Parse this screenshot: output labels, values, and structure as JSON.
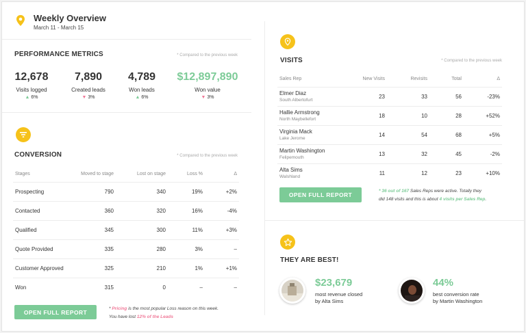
{
  "header": {
    "title": "Weekly Overview",
    "date_range": "March 11 - March 15"
  },
  "performance": {
    "title": "PERFORMANCE METRICS",
    "note": "* Compared to the previous week",
    "metrics": [
      {
        "value": "12,678",
        "label": "Visits logged",
        "change": "6%",
        "direction": "up"
      },
      {
        "value": "7,890",
        "label": "Created leads",
        "change": "3%",
        "direction": "down"
      },
      {
        "value": "4,789",
        "label": "Won leads",
        "change": "6%",
        "direction": "up"
      },
      {
        "value": "$12,897,890",
        "label": "Won value",
        "change": "3%",
        "direction": "down"
      }
    ]
  },
  "conversion": {
    "title": "CONVERSION",
    "note": "* Compared to the previous week",
    "columns": [
      "Stages",
      "Moved to stage",
      "Lost on stage",
      "Loss %",
      "Δ"
    ],
    "rows": [
      {
        "stage": "Prospecting",
        "moved": "790",
        "lost": "340",
        "loss": "19%",
        "delta": "+2%",
        "delta_type": "neg"
      },
      {
        "stage": "Contacted",
        "moved": "360",
        "lost": "320",
        "loss": "16%",
        "delta": "-4%",
        "delta_type": "pos"
      },
      {
        "stage": "Qualified",
        "moved": "345",
        "lost": "300",
        "loss": "11%",
        "delta": "+3%",
        "delta_type": "neg"
      },
      {
        "stage": "Quote Provided",
        "moved": "335",
        "lost": "280",
        "loss": "3%",
        "delta": "–",
        "delta_type": "none"
      },
      {
        "stage": "Customer Approved",
        "moved": "325",
        "lost": "210",
        "loss": "1%",
        "delta": "+1%",
        "delta_type": "neg"
      },
      {
        "stage": "Won",
        "moved": "315",
        "lost": "0",
        "loss": "–",
        "delta": "–",
        "delta_type": "none"
      }
    ],
    "button": "OPEN FULL REPORT",
    "footnote": {
      "line1_pre": "* ",
      "line1_bold": "Pricing",
      "line1_post": " is the most popular Loss reason on this week.",
      "line2_pre": "You have lost ",
      "line2_bold": "12% of the Leads"
    }
  },
  "visits": {
    "title": "VISITS",
    "note": "* Compared to the previous week",
    "columns": [
      "Sales Rep",
      "New Visits",
      "Revisits",
      "Total",
      "Δ"
    ],
    "rows": [
      {
        "name": "Elmer Diaz",
        "location": "South Albertofurt",
        "new": "23",
        "revisits": "33",
        "total": "56",
        "delta": "-23%",
        "delta_type": "neg"
      },
      {
        "name": "Hallie Armstrong",
        "location": "North Maybellefort",
        "new": "18",
        "revisits": "10",
        "total": "28",
        "delta": "+52%",
        "delta_type": "pos"
      },
      {
        "name": "Virginia Mack",
        "location": "Lake Jerome",
        "new": "14",
        "revisits": "54",
        "total": "68",
        "delta": "+5%",
        "delta_type": "pos"
      },
      {
        "name": "Martin Washington",
        "location": "Felipemouth",
        "new": "13",
        "revisits": "32",
        "total": "45",
        "delta": "-2%",
        "delta_type": "neg"
      },
      {
        "name": "Alta Sims",
        "location": "Walshland",
        "new": "11",
        "revisits": "12",
        "total": "23",
        "delta": "+10%",
        "delta_type": "pos"
      }
    ],
    "button": "OPEN FULL REPORT",
    "footnote": {
      "line1_bold": "* 36 out of 167",
      "line1_post": " Sales Reps were active. Totally they",
      "line2_pre": "did 148 visits and this is about ",
      "line2_bold": "4 visits per Sales Rep",
      "line2_post": "."
    }
  },
  "best": {
    "title": "THEY ARE BEST!",
    "items": [
      {
        "value": "$23,679",
        "label1": "most revenue closed",
        "label2": "by Alta Sims"
      },
      {
        "value": "44%",
        "label1": "best conversion rate",
        "label2": "by Martin Washington"
      }
    ]
  },
  "colors": {
    "accent": "#f6c21a",
    "positive": "#7ccb97",
    "negative": "#f07a99"
  },
  "icons": {
    "header": "map-pin-icon",
    "conversion": "funnel-icon",
    "visits": "map-pin-icon",
    "best": "star-icon"
  }
}
